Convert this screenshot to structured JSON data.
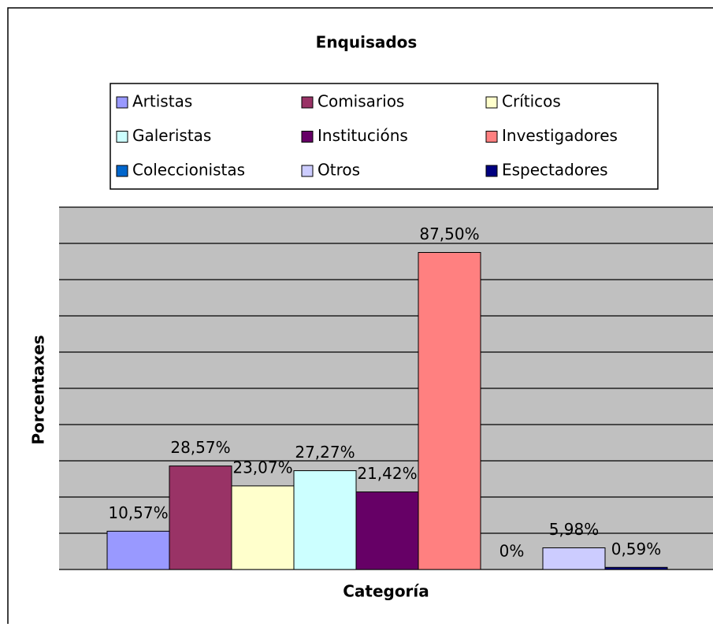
{
  "chart_data": {
    "type": "bar",
    "title": "Enquisados",
    "x_label": "Categoría",
    "y_label": "Porcentaxes",
    "categories": [
      ""
    ],
    "series": [
      {
        "name": "Artistas",
        "color": "#9999ff",
        "values": [
          10.57
        ],
        "value_labels": [
          "10,57%"
        ]
      },
      {
        "name": "Comisarios",
        "color": "#993366",
        "values": [
          28.57
        ],
        "value_labels": [
          "28,57%"
        ]
      },
      {
        "name": "Críticos",
        "color": "#ffffcc",
        "values": [
          23.07
        ],
        "value_labels": [
          "23,07%"
        ]
      },
      {
        "name": "Galeristas",
        "color": "#ccffff",
        "values": [
          27.27
        ],
        "value_labels": [
          "27,27%"
        ]
      },
      {
        "name": "Institucións",
        "color": "#660066",
        "values": [
          21.42
        ],
        "value_labels": [
          "21,42%"
        ]
      },
      {
        "name": "Investigadores",
        "color": "#ff8080",
        "values": [
          87.5
        ],
        "value_labels": [
          "87,50%"
        ]
      },
      {
        "name": "Coleccionistas",
        "color": "#0066cc",
        "values": [
          0
        ],
        "value_labels": [
          "0%"
        ]
      },
      {
        "name": "Otros",
        "color": "#ccccff",
        "values": [
          5.98
        ],
        "value_labels": [
          "5,98%"
        ]
      },
      {
        "name": "Espectadores",
        "color": "#000080",
        "values": [
          0.59
        ],
        "value_labels": [
          "0,59%"
        ]
      }
    ],
    "ylim": [
      0,
      100
    ],
    "yticks": [
      0,
      10,
      20,
      30,
      40,
      50,
      60,
      70,
      80,
      90,
      100
    ],
    "grid": true,
    "legend": "top"
  }
}
